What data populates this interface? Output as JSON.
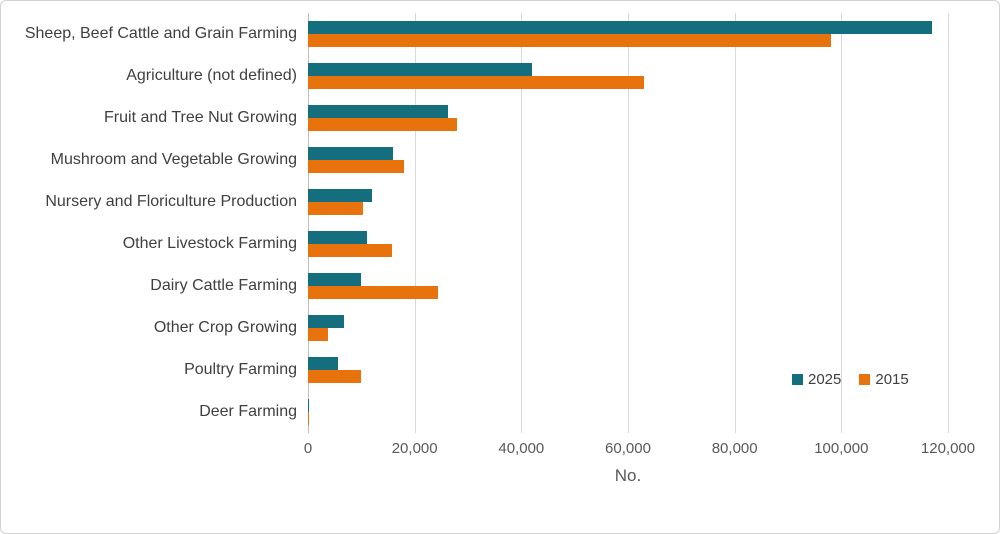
{
  "chart_data": {
    "type": "bar",
    "orientation": "horizontal",
    "title": "",
    "xlabel": "No.",
    "ylabel": "",
    "xlim": [
      0,
      120000
    ],
    "xticks": [
      0,
      20000,
      40000,
      60000,
      80000,
      100000,
      120000
    ],
    "tick_labels": [
      "0",
      "20,000",
      "40,000",
      "60,000",
      "80,000",
      "100,000",
      "120,000"
    ],
    "grid": true,
    "legend_position": "inside-bottom-right",
    "categories": [
      "Sheep, Beef Cattle and Grain Farming",
      "Agriculture (not defined)",
      "Fruit and Tree Nut Growing",
      "Mushroom and Vegetable Growing",
      "Nursery and Floriculture Production",
      "Other Livestock Farming",
      "Dairy Cattle Farming",
      "Other Crop Growing",
      "Poultry Farming",
      "Deer Farming"
    ],
    "series": [
      {
        "name": "2025",
        "color": "#146E7D",
        "values": [
          117000,
          42000,
          26300,
          16000,
          12000,
          11000,
          10000,
          6700,
          5600,
          50
        ]
      },
      {
        "name": "2015",
        "color": "#E8720C",
        "values": [
          98000,
          63000,
          27900,
          18000,
          10300,
          15800,
          24300,
          3700,
          10000,
          250
        ]
      }
    ]
  },
  "colors": {
    "series_2025": "#146E7D",
    "series_2015": "#E8720C",
    "gridline": "#D9D9D9",
    "axis_line": "#BFBFBF",
    "category_text": "#3F3F3F",
    "tick_text": "#595959",
    "frame_border": "#D2D2D2",
    "background": "#FFFFFF"
  }
}
